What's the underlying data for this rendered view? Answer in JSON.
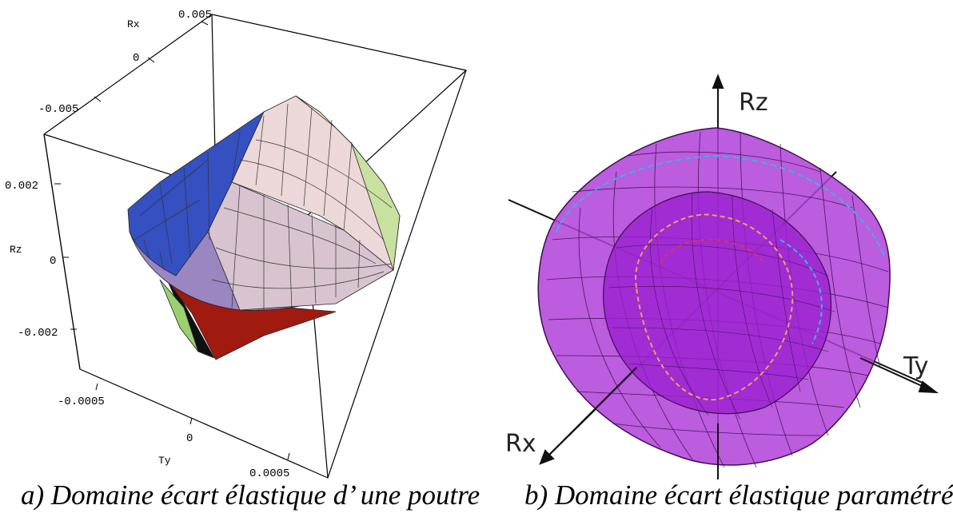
{
  "figure_a": {
    "caption": "a) Domaine écart élastique d’ une poutre",
    "axes": {
      "rx": {
        "label": "Rx",
        "ticks": [
          "0.005",
          "0",
          "-0.005"
        ]
      },
      "rz": {
        "label": "Rz",
        "ticks": [
          "0.002",
          "0",
          "-0.002"
        ]
      },
      "ty": {
        "label": "Ty",
        "ticks": [
          "-0.0005",
          "0",
          "0.0005"
        ]
      }
    },
    "colors": {
      "blue": "#3550c0",
      "pink": "#e8c8cc",
      "lilac": "#9a86c0",
      "red": "#a01a10",
      "green": "#9ad070",
      "cream": "#f2e6c8"
    }
  },
  "figure_b": {
    "caption": "b) Domaine écart élastique paramétré",
    "axes": {
      "rz": "Rz",
      "ty": "Ty",
      "rx": "Rx"
    },
    "colors": {
      "outer": "#b040d8",
      "inner": "#9a20d0",
      "mesh": "#3a1050"
    }
  }
}
